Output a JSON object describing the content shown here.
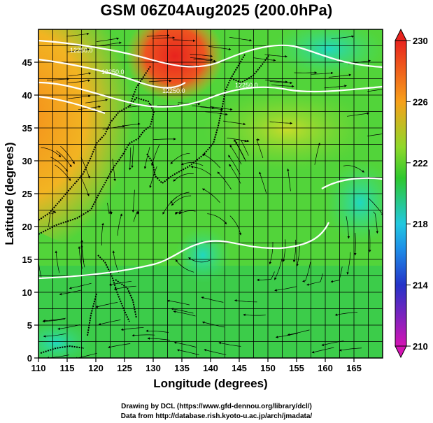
{
  "title": "GSM 06Z04Aug2025 (200.0hPa)",
  "x_axis": {
    "label": "Longitude (degrees)",
    "ticks": [
      "110",
      "115",
      "120",
      "125",
      "130",
      "135",
      "140",
      "145",
      "150",
      "155",
      "160",
      "165"
    ],
    "range": [
      110,
      170
    ]
  },
  "y_axis": {
    "label": "Latitude (degrees)",
    "ticks": [
      "0",
      "5",
      "10",
      "15",
      "20",
      "25",
      "30",
      "35",
      "40",
      "45"
    ],
    "range": [
      0,
      50
    ]
  },
  "colorbar": {
    "ticks": [
      "230",
      "226",
      "222",
      "218",
      "214",
      "210"
    ],
    "range": [
      210,
      230
    ],
    "colors": {
      "230": "#e8231e",
      "226": "#f7a01a",
      "222": "#2ec82e",
      "218": "#22c8e0",
      "214": "#2433c8",
      "210": "#d414b4"
    }
  },
  "contour_labels": [
    "12250.0",
    "12250.0",
    "12250.0",
    "12250.0"
  ],
  "credits": {
    "line1": "Drawing by DCL (https://www.gfd-dennou.org/library/dcl/)",
    "line2": "Data from http://database.rish.kyoto-u.ac.jp/arch/jmadata/"
  },
  "colors": {
    "coast": "#000000",
    "contour": "#ffffff",
    "streamline": "#000000"
  }
}
